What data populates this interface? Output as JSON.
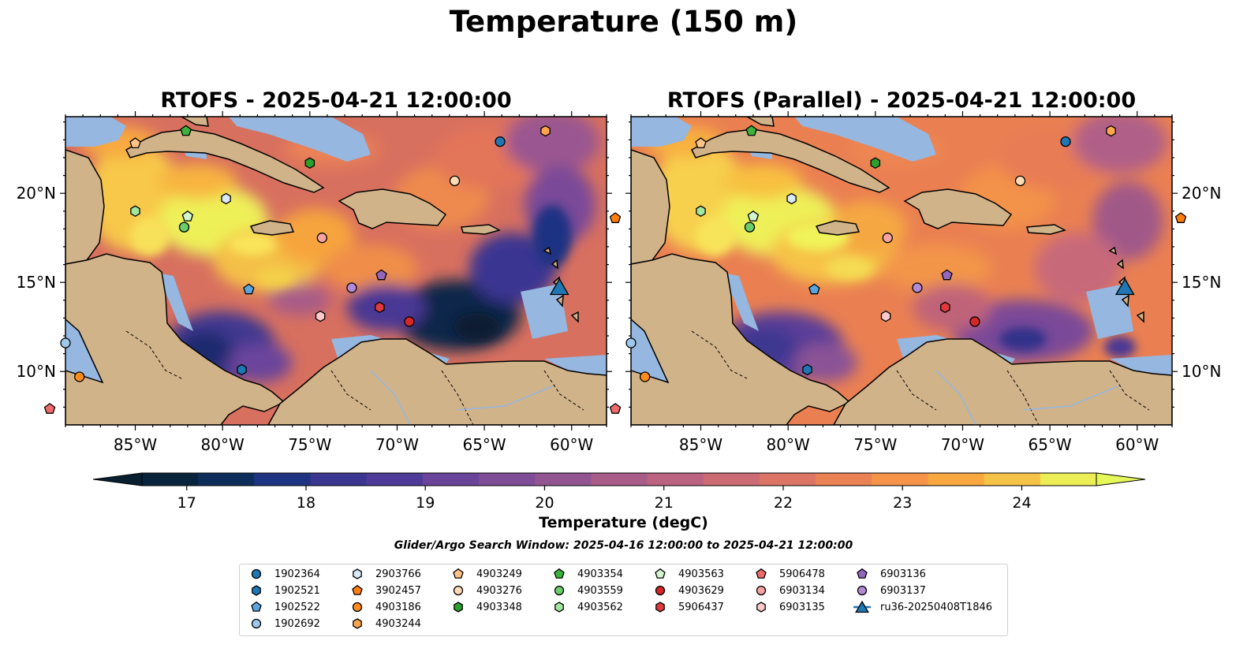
{
  "figure": {
    "title": "Temperature (150 m)",
    "panels": [
      {
        "title": "RTOFS - 2025-04-21 12:00:00"
      },
      {
        "title": "RTOFS (Parallel) - 2025-04-21 12:00:00"
      }
    ],
    "lon_ticks": [
      "85°W",
      "80°W",
      "75°W",
      "70°W",
      "65°W",
      "60°W"
    ],
    "lat_ticks": [
      "20°N",
      "15°N",
      "10°N"
    ],
    "colorbar": {
      "label": "Temperature (degC)",
      "ticks": [
        "17",
        "18",
        "19",
        "20",
        "21",
        "22",
        "23",
        "24"
      ],
      "range": [
        16.625,
        24.625
      ],
      "colors": [
        "#08243c",
        "#0c2d5a",
        "#1f3383",
        "#3a3692",
        "#4e3a99",
        "#6a449b",
        "#7f4c98",
        "#935591",
        "#a85c88",
        "#bb6380",
        "#cc6b73",
        "#dc7565",
        "#eb8256",
        "#f59349",
        "#f8a83f",
        "#f6c346",
        "#ebee55"
      ],
      "extend_low_color": "#071f30",
      "extend_high_color": "#e6f75a"
    },
    "search_window": "Glider/Argo Search Window: 2025-04-16 12:00:00 to 2025-04-21 12:00:00"
  },
  "legend": {
    "entries": [
      {
        "label": "1902364",
        "marker": "circle",
        "color": "#1f77b4"
      },
      {
        "label": "1902521",
        "marker": "hexagon",
        "color": "#1f77b4"
      },
      {
        "label": "1902522",
        "marker": "pentagon",
        "color": "#5aa5e0"
      },
      {
        "label": "1902692",
        "marker": "circle",
        "color": "#9fc8ec"
      },
      {
        "label": "2903766",
        "marker": "hexagon",
        "color": "#dbeaf8"
      },
      {
        "label": "3902457",
        "marker": "pentagon",
        "color": "#ff7f0e"
      },
      {
        "label": "4903186",
        "marker": "circle",
        "color": "#ff8c1a"
      },
      {
        "label": "4903244",
        "marker": "hexagon",
        "color": "#ffa64d"
      },
      {
        "label": "4903249",
        "marker": "pentagon",
        "color": "#ffc38a"
      },
      {
        "label": "4903276",
        "marker": "circle",
        "color": "#ffdcb5"
      },
      {
        "label": "4903348",
        "marker": "hexagon",
        "color": "#2ca02c"
      },
      {
        "label": "4903354",
        "marker": "pentagon",
        "color": "#3cb43c"
      },
      {
        "label": "4903559",
        "marker": "circle",
        "color": "#6ccd6c"
      },
      {
        "label": "4903562",
        "marker": "hexagon",
        "color": "#a3e6a0"
      },
      {
        "label": "4903563",
        "marker": "pentagon",
        "color": "#d2f5cf"
      },
      {
        "label": "4903629",
        "marker": "circle",
        "color": "#d62728"
      },
      {
        "label": "5906437",
        "marker": "hexagon",
        "color": "#e03a3c"
      },
      {
        "label": "5906478",
        "marker": "pentagon",
        "color": "#ef6a6a"
      },
      {
        "label": "6903134",
        "marker": "circle",
        "color": "#f7a3a3"
      },
      {
        "label": "6903135",
        "marker": "hexagon",
        "color": "#fccaca"
      },
      {
        "label": "6903136",
        "marker": "pentagon",
        "color": "#9467bd"
      },
      {
        "label": "6903137",
        "marker": "circle",
        "color": "#b38ad6"
      },
      {
        "label": "ru36-20250408T1846",
        "marker": "triangle-line",
        "color": "#1f77b4"
      }
    ]
  },
  "markers": [
    {
      "id": "1902364",
      "lon": -64.1,
      "lat": 22.9
    },
    {
      "id": "1902521",
      "lon": -78.9,
      "lat": 10.1
    },
    {
      "id": "1902522",
      "lon": -78.5,
      "lat": 14.6
    },
    {
      "id": "1902692",
      "lon": -89.0,
      "lat": 11.6
    },
    {
      "id": "2903766",
      "lon": -79.8,
      "lat": 19.7
    },
    {
      "id": "3902457",
      "lon": -57.5,
      "lat": 18.6
    },
    {
      "id": "4903186",
      "lon": -88.2,
      "lat": 9.7
    },
    {
      "id": "4903244",
      "lon": -61.5,
      "lat": 23.5
    },
    {
      "id": "4903249",
      "lon": -85.0,
      "lat": 22.8
    },
    {
      "id": "4903276",
      "lon": -66.7,
      "lat": 20.7
    },
    {
      "id": "4903348",
      "lon": -75.0,
      "lat": 21.7
    },
    {
      "id": "4903354",
      "lon": -82.1,
      "lat": 23.5
    },
    {
      "id": "4903559",
      "lon": -82.2,
      "lat": 18.1
    },
    {
      "id": "4903562",
      "lon": -85.0,
      "lat": 19.0
    },
    {
      "id": "4903563",
      "lon": -82.0,
      "lat": 18.7
    },
    {
      "id": "4903629",
      "lon": -69.3,
      "lat": 12.8
    },
    {
      "id": "5906437",
      "lon": -71.0,
      "lat": 13.6
    },
    {
      "id": "5906478",
      "lon": -89.9,
      "lat": 7.9
    },
    {
      "id": "6903134",
      "lon": -74.3,
      "lat": 17.5
    },
    {
      "id": "6903135",
      "lon": -74.4,
      "lat": 13.1
    },
    {
      "id": "6903136",
      "lon": -70.9,
      "lat": 15.4
    },
    {
      "id": "6903137",
      "lon": -72.6,
      "lat": 14.7
    },
    {
      "id": "ru36-20250408T1846",
      "lon": -60.7,
      "lat": 14.7
    }
  ]
}
